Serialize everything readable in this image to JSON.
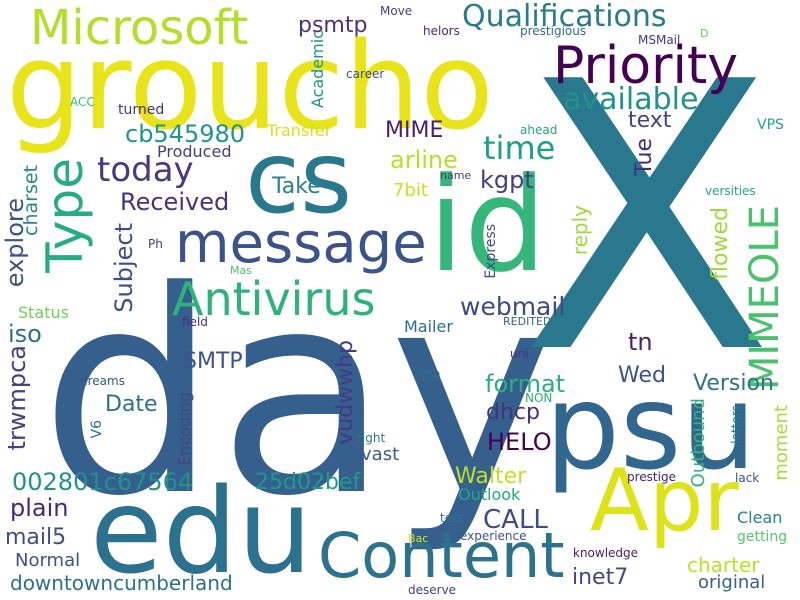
{
  "words": [
    {
      "text": "day",
      "color": "#355f8d"
    },
    {
      "text": "X",
      "color": "#2a788e"
    },
    {
      "text": "groucho",
      "color": "#e8e419"
    },
    {
      "text": "edu",
      "color": "#2c718e"
    },
    {
      "text": "psu",
      "color": "#31668e"
    },
    {
      "text": "id",
      "color": "#35b779"
    },
    {
      "text": "Apr",
      "color": "#dde318"
    },
    {
      "text": "cs",
      "color": "#2a788e"
    },
    {
      "text": "Content",
      "color": "#2c728e"
    },
    {
      "text": "message",
      "color": "#3b528b"
    },
    {
      "text": "Type",
      "color": "#25ac82"
    },
    {
      "text": "Microsoft",
      "color": "#b5de2b"
    },
    {
      "text": "Priority",
      "color": "#440154"
    },
    {
      "text": "Antivirus",
      "color": "#2db27d"
    },
    {
      "text": "Qualifications",
      "color": "#287c8e"
    },
    {
      "text": "MIMEOLE",
      "color": "#4ac16d"
    },
    {
      "text": "available",
      "color": "#21918c"
    },
    {
      "text": "today",
      "color": "#443983"
    },
    {
      "text": "time",
      "color": "#1f9f88"
    },
    {
      "text": "cb545980",
      "color": "#1f968b"
    },
    {
      "text": "psmtp",
      "color": "#46327e"
    },
    {
      "text": "webmail",
      "color": "#3e4989"
    },
    {
      "text": "MIME",
      "color": "#481f70"
    },
    {
      "text": "Received",
      "color": "#46327e"
    },
    {
      "text": "Take",
      "color": "#27808e"
    },
    {
      "text": "arline",
      "color": "#b8de29"
    },
    {
      "text": "kgpt",
      "color": "#433e85"
    },
    {
      "text": "text",
      "color": "#414487"
    },
    {
      "text": "Tue",
      "color": "#472d7b"
    },
    {
      "text": "reply",
      "color": "#a2da37"
    },
    {
      "text": "flowed",
      "color": "#a0da39"
    },
    {
      "text": "Subject",
      "color": "#3d4e8a"
    },
    {
      "text": "charset",
      "color": "#24878e"
    },
    {
      "text": "explore",
      "color": "#3b528b"
    },
    {
      "text": "iso",
      "color": "#2e6f8e"
    },
    {
      "text": "Status",
      "color": "#70cf57"
    },
    {
      "text": "SMTP",
      "color": "#3b528b"
    },
    {
      "text": "vudwwhp",
      "color": "#443a83"
    },
    {
      "text": "trwmpca",
      "color": "#424086"
    },
    {
      "text": "Date",
      "color": "#2d708e"
    },
    {
      "text": "format",
      "color": "#2ab07f"
    },
    {
      "text": "Wed",
      "color": "#3b528b"
    },
    {
      "text": "Version",
      "color": "#2c728e"
    },
    {
      "text": "tn",
      "color": "#482475"
    },
    {
      "text": "HELO",
      "color": "#440154"
    },
    {
      "text": "dhcp",
      "color": "#46337f"
    },
    {
      "text": "CALL",
      "color": "#3e4a89"
    },
    {
      "text": "002801c67564",
      "color": "#21918c"
    },
    {
      "text": "25d02bef",
      "color": "#1f9a8a"
    },
    {
      "text": "Walter",
      "color": "#c2df23"
    },
    {
      "text": "plain",
      "color": "#482878"
    },
    {
      "text": "mail5",
      "color": "#3e4c8a"
    },
    {
      "text": "Normal",
      "color": "#3b528b"
    },
    {
      "text": "downtowncumberland",
      "color": "#2e6f8e"
    },
    {
      "text": "inet7",
      "color": "#3f4889"
    },
    {
      "text": "charter",
      "color": "#bddf26"
    },
    {
      "text": "original",
      "color": "#33638d"
    },
    {
      "text": "Clean",
      "color": "#26828e"
    },
    {
      "text": "getting",
      "color": "#56c667"
    },
    {
      "text": "moment",
      "color": "#a8db34"
    },
    {
      "text": "Outbound",
      "color": "#31b57b"
    },
    {
      "text": "Outlook",
      "color": "#22a884"
    },
    {
      "text": "Encoding",
      "color": "#3f4788"
    },
    {
      "text": "avast",
      "color": "#355e8d"
    },
    {
      "text": "V6",
      "color": "#2c728e"
    },
    {
      "text": "Express",
      "color": "#3e4c8a"
    },
    {
      "text": "Mailer",
      "color": "#2e6e8e"
    },
    {
      "text": "7bit",
      "color": "#cae11f"
    },
    {
      "text": "Transfer",
      "color": "#d5e21a"
    },
    {
      "text": "Produced",
      "color": "#433e85"
    },
    {
      "text": "Academic",
      "color": "#1f968b"
    },
    {
      "text": "career",
      "color": "#3b528b"
    },
    {
      "text": "Move",
      "color": "#433d84"
    },
    {
      "text": "helors",
      "color": "#482979"
    },
    {
      "text": "prestigious",
      "color": "#2f6b8e"
    },
    {
      "text": "MSMail",
      "color": "#443983"
    },
    {
      "text": "D",
      "color": "#67cc5c"
    },
    {
      "text": "ACC",
      "color": "#3dbc74"
    },
    {
      "text": "turned",
      "color": "#453581"
    },
    {
      "text": "ahead",
      "color": "#20a386"
    },
    {
      "text": "VPS",
      "color": "#21a585"
    },
    {
      "text": "name",
      "color": "#433e85"
    },
    {
      "text": "versities",
      "color": "#21a685"
    },
    {
      "text": "Ph",
      "color": "#453781"
    },
    {
      "text": "Mas",
      "color": "#4ac16d"
    },
    {
      "text": "field",
      "color": "#46307e"
    },
    {
      "text": "REDITED",
      "color": "#33638d"
    },
    {
      "text": "uni",
      "color": "#46327e"
    },
    {
      "text": "job",
      "color": "#2e6e8e"
    },
    {
      "text": "NON",
      "color": "#29af7f"
    },
    {
      "text": "dreams",
      "color": "#39558c"
    },
    {
      "text": "right",
      "color": "#2a788e"
    },
    {
      "text": "letters",
      "color": "#287d8e"
    },
    {
      "text": "prestige",
      "color": "#482173"
    },
    {
      "text": "lack",
      "color": "#3b528b"
    },
    {
      "text": "ters",
      "color": "#2a788e"
    },
    {
      "text": "Bac",
      "color": "#d2e21b"
    },
    {
      "text": "experience",
      "color": "#3b528b"
    },
    {
      "text": "knowledge",
      "color": "#481a6c"
    },
    {
      "text": "deserve",
      "color": "#424086"
    }
  ]
}
